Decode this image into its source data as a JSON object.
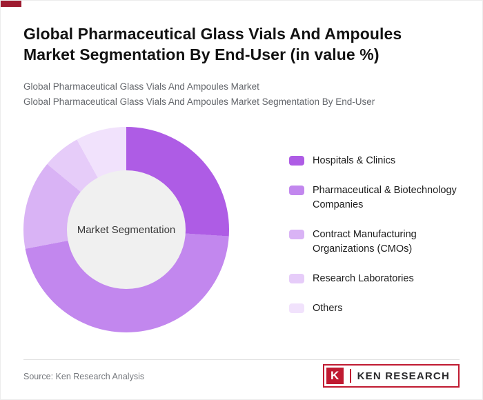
{
  "accent_color": "#9e1b30",
  "header": {
    "title": "Global Pharmaceutical Glass Vials And Ampoules Market Segmentation By End-User (in value %)",
    "subtitle1": "Global Pharmaceutical Glass Vials And Ampoules Market",
    "subtitle2": "Global Pharmaceutical Glass Vials And Ampoules Market Segmentation By End-User"
  },
  "chart_data": {
    "type": "pie",
    "subtype": "donut",
    "title": "Global Pharmaceutical Glass Vials And Ampoules Market Segmentation By End-User (in value %)",
    "center_label": "Market Segmentation",
    "categories": [
      "Hospitals & Clinics",
      "Pharmaceutical & Biotechnology Companies",
      "Contract Manufacturing Organizations (CMOs)",
      "Research Laboratories",
      "Others"
    ],
    "values": [
      26,
      46,
      14,
      6,
      8
    ],
    "unit": "value %",
    "colors": [
      "#ae5ce5",
      "#c287ee",
      "#d9b3f5",
      "#e6ccf9",
      "#f1e2fc"
    ],
    "hole_color": "#f0f0f0",
    "legend_position": "right",
    "start_angle_deg": 0,
    "direction": "clockwise",
    "data_labels_shown": false
  },
  "legend": {
    "items": [
      {
        "label": "Hospitals & Clinics",
        "color": "#ae5ce5"
      },
      {
        "label": "Pharmaceutical & Biotechnology Companies",
        "color": "#c287ee"
      },
      {
        "label": "Contract Manufacturing Organizations (CMOs)",
        "color": "#d9b3f5"
      },
      {
        "label": "Research Laboratories",
        "color": "#e6ccf9"
      },
      {
        "label": "Others",
        "color": "#f1e2fc"
      }
    ]
  },
  "footer": {
    "source": "Source: Ken Research Analysis",
    "logo_mark": "K",
    "logo_text": "KEN RESEARCH",
    "logo_color": "#c01a31"
  }
}
